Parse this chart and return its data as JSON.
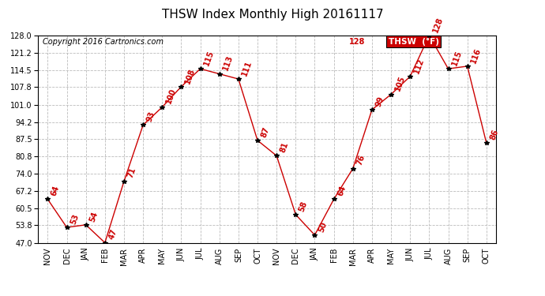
{
  "title": "THSW Index Monthly High 20161117",
  "copyright": "Copyright 2016 Cartronics.com",
  "legend_label": "THSW  (°F)",
  "months": [
    "NOV",
    "DEC",
    "JAN",
    "FEB",
    "MAR",
    "APR",
    "MAY",
    "JUN",
    "JUL",
    "AUG",
    "SEP",
    "OCT",
    "NOV",
    "DEC",
    "JAN",
    "FEB",
    "MAR",
    "APR",
    "MAY",
    "JUN",
    "JUL",
    "AUG",
    "SEP",
    "OCT"
  ],
  "values": [
    64,
    53,
    54,
    47,
    71,
    93,
    100,
    108,
    115,
    113,
    111,
    87,
    81,
    58,
    50,
    64,
    76,
    99,
    105,
    112,
    128,
    115,
    116,
    86
  ],
  "ylim": [
    47.0,
    128.0
  ],
  "yticks": [
    47.0,
    53.8,
    60.5,
    67.2,
    74.0,
    80.8,
    87.5,
    94.2,
    101.0,
    107.8,
    114.5,
    121.2,
    128.0
  ],
  "line_color": "#cc0000",
  "marker_color": "#000000",
  "bg_color": "#ffffff",
  "grid_color": "#bbbbbb",
  "label_color": "#cc0000",
  "title_fontsize": 11,
  "copyright_fontsize": 7,
  "axis_fontsize": 7,
  "value_fontsize": 7,
  "legend_box_color": "#cc0000",
  "legend_text_color": "#ffffff"
}
